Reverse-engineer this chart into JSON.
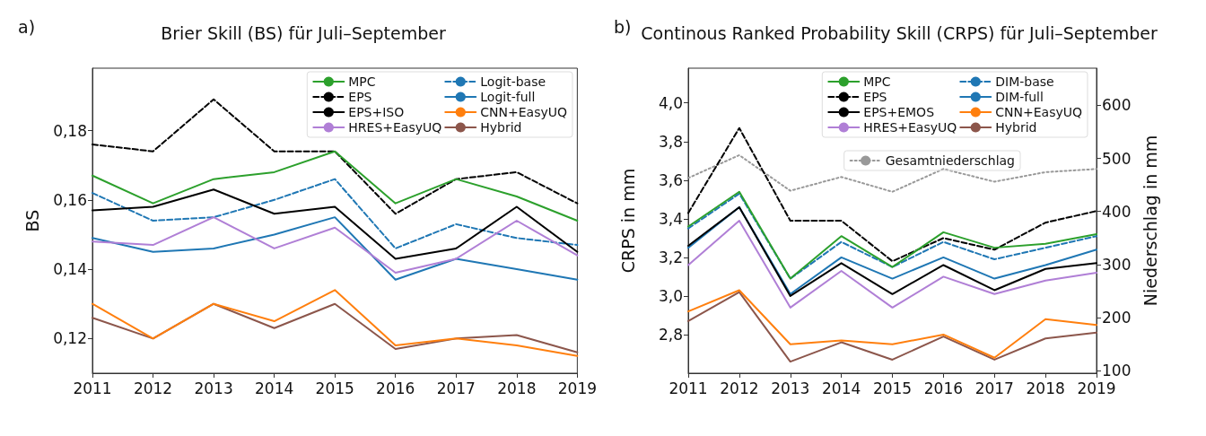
{
  "chart_data": [
    {
      "type": "line",
      "title": "Brier Skill (BS) für Juli–September",
      "ylabel": "BS",
      "annotations": [
        "a)"
      ],
      "categories": [
        "2011",
        "2012",
        "2013",
        "2014",
        "2015",
        "2016",
        "2017",
        "2018",
        "2019"
      ],
      "ylim": [
        0.11,
        0.198
      ],
      "yticks": [
        {
          "value": 0.12,
          "label": "0,12"
        },
        {
          "value": 0.14,
          "label": "0,14"
        },
        {
          "value": 0.16,
          "label": "0,16"
        },
        {
          "value": 0.18,
          "label": "0,18"
        }
      ],
      "grid": false,
      "legend": "top right",
      "marker": "none",
      "series": [
        {
          "name": "MPC",
          "color": "#2ca02c",
          "line_style": "solid",
          "values": [
            0.167,
            0.159,
            0.166,
            0.168,
            0.174,
            0.159,
            0.166,
            0.161,
            0.154
          ]
        },
        {
          "name": "EPS",
          "color": "#000000",
          "line_style": "dashed",
          "values": [
            0.176,
            0.174,
            0.189,
            0.174,
            0.174,
            0.156,
            0.166,
            0.168,
            0.159
          ]
        },
        {
          "name": "EPS+ISO",
          "color": "#000000",
          "line_style": "solid",
          "values": [
            0.157,
            0.158,
            0.163,
            0.156,
            0.158,
            0.143,
            0.146,
            0.158,
            0.145
          ]
        },
        {
          "name": "HRES+EasyUQ",
          "color": "#b07fd6",
          "line_style": "solid",
          "values": [
            0.148,
            0.147,
            0.155,
            0.146,
            0.152,
            0.139,
            0.143,
            0.154,
            0.144
          ]
        },
        {
          "name": "Logit-base",
          "color": "#1f77b4",
          "line_style": "dashed",
          "values": [
            0.162,
            0.154,
            0.155,
            0.16,
            0.166,
            0.146,
            0.153,
            0.149,
            0.147
          ]
        },
        {
          "name": "Logit-full",
          "color": "#1f77b4",
          "line_style": "solid",
          "values": [
            0.149,
            0.145,
            0.146,
            0.15,
            0.155,
            0.137,
            0.143,
            0.14,
            0.137
          ]
        },
        {
          "name": "CNN+EasyUQ",
          "color": "#ff7f0e",
          "line_style": "solid",
          "values": [
            0.13,
            0.12,
            0.13,
            0.125,
            0.134,
            0.118,
            0.12,
            0.118,
            0.115
          ]
        },
        {
          "name": "Hybrid",
          "color": "#8c564b",
          "line_style": "solid",
          "values": [
            0.126,
            0.12,
            0.13,
            0.123,
            0.13,
            0.117,
            0.12,
            0.121,
            0.116
          ]
        }
      ]
    },
    {
      "type": "line",
      "title": "Continous Ranked Probability Skill (CRPS) für Juli–September",
      "ylabel": "CRPS in mm",
      "y2label": "Niederschlag in mm",
      "annotations": [
        "b)"
      ],
      "categories": [
        "2011",
        "2012",
        "2013",
        "2014",
        "2015",
        "2016",
        "2017",
        "2018",
        "2019"
      ],
      "ylim": [
        2.6,
        4.18
      ],
      "yticks": [
        {
          "value": 2.8,
          "label": "2,8"
        },
        {
          "value": 3.0,
          "label": "3,0"
        },
        {
          "value": 3.2,
          "label": "3,2"
        },
        {
          "value": 3.4,
          "label": "3,4"
        },
        {
          "value": 3.6,
          "label": "3,6"
        },
        {
          "value": 3.8,
          "label": "3,8"
        },
        {
          "value": 4.0,
          "label": "4,0"
        }
      ],
      "y2lim": [
        95,
        670
      ],
      "y2ticks": [
        100,
        200,
        300,
        400,
        500,
        600
      ],
      "grid": false,
      "legend": "top right",
      "marker": "none",
      "series": [
        {
          "name": "MPC",
          "color": "#2ca02c",
          "line_style": "solid",
          "values": [
            3.36,
            3.54,
            3.09,
            3.31,
            3.15,
            3.33,
            3.25,
            3.27,
            3.32
          ]
        },
        {
          "name": "EPS",
          "color": "#000000",
          "line_style": "dashed",
          "values": [
            3.43,
            3.87,
            3.39,
            3.39,
            3.18,
            3.3,
            3.24,
            3.38,
            3.44
          ]
        },
        {
          "name": "EPS+EMOS",
          "color": "#000000",
          "line_style": "solid",
          "values": [
            3.26,
            3.46,
            3.0,
            3.17,
            3.01,
            3.16,
            3.03,
            3.14,
            3.17
          ]
        },
        {
          "name": "HRES+EasyUQ",
          "color": "#b07fd6",
          "line_style": "solid",
          "values": [
            3.16,
            3.39,
            2.94,
            3.13,
            2.94,
            3.1,
            3.01,
            3.08,
            3.12
          ]
        },
        {
          "name": "DIM-base",
          "color": "#1f77b4",
          "line_style": "dashed",
          "values": [
            3.35,
            3.53,
            3.09,
            3.28,
            3.15,
            3.28,
            3.19,
            3.25,
            3.31
          ]
        },
        {
          "name": "DIM-full",
          "color": "#1f77b4",
          "line_style": "solid",
          "values": [
            3.25,
            3.46,
            3.01,
            3.2,
            3.09,
            3.2,
            3.09,
            3.16,
            3.24
          ]
        },
        {
          "name": "CNN+EasyUQ",
          "color": "#ff7f0e",
          "line_style": "solid",
          "values": [
            2.92,
            3.03,
            2.75,
            2.77,
            2.75,
            2.8,
            2.68,
            2.88,
            2.85
          ]
        },
        {
          "name": "Hybrid",
          "color": "#8c564b",
          "line_style": "solid",
          "values": [
            2.87,
            3.02,
            2.66,
            2.76,
            2.67,
            2.79,
            2.67,
            2.78,
            2.81
          ]
        },
        {
          "name": "Gesamtniederschlag",
          "color": "#999999",
          "line_style": "dotted",
          "axis": "y2",
          "values": [
            463,
            506,
            439,
            465,
            437,
            480,
            456,
            474,
            480
          ]
        }
      ]
    }
  ]
}
